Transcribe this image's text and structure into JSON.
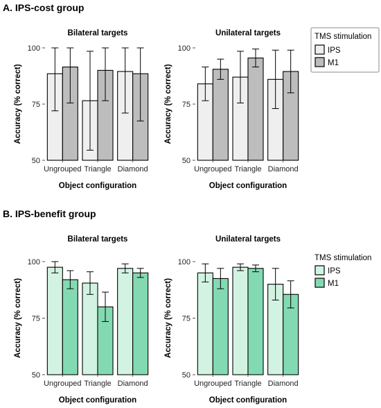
{
  "sections": [
    {
      "title": "A. IPS-cost group",
      "legend_title": "TMS stimulation",
      "colors": {
        "IPS": "#efefef",
        "M1": "#bdbdbd"
      },
      "chart_data": [
        {
          "type": "bar",
          "title": "Bilateral targets",
          "xlabel": "Object configuration",
          "ylabel": "Accuracy (% correct)",
          "ylim": [
            50,
            100
          ],
          "yticks": [
            50,
            75,
            100
          ],
          "categories": [
            "Ungrouped",
            "Triangle",
            "Diamond"
          ],
          "series": [
            {
              "name": "IPS",
              "values": [
                88.5,
                76.5,
                89.5
              ],
              "error": [
                16.5,
                22,
                18.5
              ]
            },
            {
              "name": "M1",
              "values": [
                91.5,
                90,
                88.5
              ],
              "error": [
                16,
                13.5,
                21
              ]
            }
          ]
        },
        {
          "type": "bar",
          "title": "Unilateral targets",
          "xlabel": "Object configuration",
          "ylabel": "Accuracy (% correct)",
          "ylim": [
            50,
            100
          ],
          "yticks": [
            50,
            75,
            100
          ],
          "categories": [
            "Ungrouped",
            "Triangle",
            "Diamond"
          ],
          "series": [
            {
              "name": "IPS",
              "values": [
                84,
                87,
                86
              ],
              "error": [
                7.5,
                11.5,
                13
              ]
            },
            {
              "name": "M1",
              "values": [
                90.5,
                95.5,
                89.5
              ],
              "error": [
                4.5,
                4,
                9.5
              ]
            }
          ]
        }
      ]
    },
    {
      "title": "B. IPS-benefit group",
      "legend_title": "TMS stimulation",
      "colors": {
        "IPS": "#d3f3e2",
        "M1": "#83dab2"
      },
      "chart_data": [
        {
          "type": "bar",
          "title": "Bilateral targets",
          "xlabel": "Object configuration",
          "ylabel": "Accuracy (% correct)",
          "ylim": [
            50,
            100
          ],
          "yticks": [
            50,
            75,
            100
          ],
          "categories": [
            "Ungrouped",
            "Triangle",
            "Diamond"
          ],
          "series": [
            {
              "name": "IPS",
              "values": [
                97.5,
                90.5,
                97
              ],
              "error": [
                2.5,
                5,
                2
              ]
            },
            {
              "name": "M1",
              "values": [
                92,
                80,
                95
              ],
              "error": [
                4,
                6.5,
                2
              ]
            }
          ]
        },
        {
          "type": "bar",
          "title": "Unilateral targets",
          "xlabel": "Object configuration",
          "ylabel": "Accuracy (% correct)",
          "ylim": [
            50,
            100
          ],
          "yticks": [
            50,
            75,
            100
          ],
          "categories": [
            "Ungrouped",
            "Triangle",
            "Diamond"
          ],
          "series": [
            {
              "name": "IPS",
              "values": [
                95,
                97.5,
                90
              ],
              "error": [
                4,
                1.5,
                7
              ]
            },
            {
              "name": "M1",
              "values": [
                92.5,
                97,
                85.5
              ],
              "error": [
                4.5,
                1.5,
                6
              ]
            }
          ]
        }
      ]
    }
  ]
}
